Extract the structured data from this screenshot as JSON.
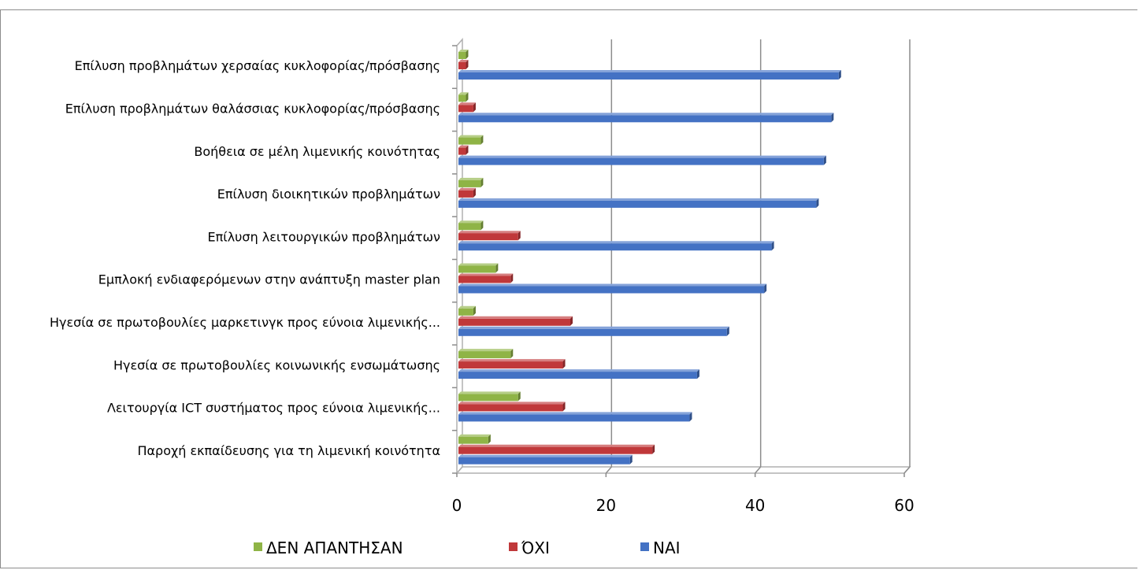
{
  "chart_data": {
    "type": "bar",
    "orientation": "horizontal",
    "title": "",
    "xlabel": "",
    "ylabel": "",
    "xlim": [
      0,
      60
    ],
    "x_ticks": [
      "0",
      "20",
      "40",
      "60"
    ],
    "grid": true,
    "legend_position": "bottom",
    "categories": [
      "Επίλυση  προβλημάτων χερσαίας κυκλοφορίας/πρόσβασης",
      "Επίλυση  προβλημάτων θαλάσσιας κυκλοφορίας/πρόσβασης",
      "Βοήθεια σε μέλη λιμενικής κοινότητας",
      "Επίλυση  διοικητικών προβλημάτων",
      "Επίλυση  λειτουργικών προβλημάτων",
      "Εμπλοκή  ενδιαφερόμενων στην ανάπτυξη master plan",
      "Ηγεσία σε πρωτοβουλίες μαρκετινγκ προς εύνοια λιμενικής...",
      "Ηγεσία σε πρωτοβουλίες κοινωνικής ενσωμάτωσης",
      "Λειτουργία ICT συστήματος προς εύνοια λιμενικής...",
      "Παροχή εκπαίδευσης για τη λιμενική κοινότητα"
    ],
    "series": [
      {
        "name": "ΔΕΝ ΑΠΑΝΤΗΣΑΝ",
        "color": "#8fb446",
        "values": [
          1,
          1,
          3,
          3,
          3,
          5,
          2,
          7,
          8,
          4
        ]
      },
      {
        "name": "ΌΧΙ",
        "color": "#c0383a",
        "values": [
          1,
          2,
          1,
          2,
          8,
          7,
          15,
          14,
          14,
          26
        ]
      },
      {
        "name": "ΝΑΙ",
        "color": "#4472c4",
        "values": [
          51,
          50,
          49,
          48,
          42,
          41,
          36,
          32,
          31,
          23
        ]
      }
    ]
  }
}
